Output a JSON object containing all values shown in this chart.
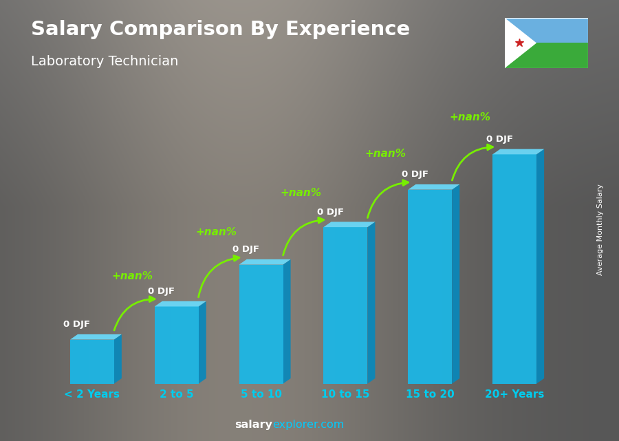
{
  "title": "Salary Comparison By Experience",
  "subtitle": "Laboratory Technician",
  "categories": [
    "< 2 Years",
    "2 to 5",
    "5 to 10",
    "10 to 15",
    "15 to 20",
    "20+ Years"
  ],
  "salary_labels": [
    "0 DJF",
    "0 DJF",
    "0 DJF",
    "0 DJF",
    "0 DJF",
    "0 DJF"
  ],
  "pct_labels": [
    "+nan%",
    "+nan%",
    "+nan%",
    "+nan%",
    "+nan%"
  ],
  "ylabel_right": "Average Monthly Salary",
  "footer_salary": "salary",
  "footer_explorer": "explorer.com",
  "bar_heights": [
    1.0,
    1.75,
    2.7,
    3.55,
    4.4,
    5.2
  ],
  "bar_face_color": "#1ab8e8",
  "bar_top_color": "#6ad8f8",
  "bar_side_color": "#0888bb",
  "bg_gray": "#808080",
  "title_color": "#ffffff",
  "subtitle_color": "#ffffff",
  "label_color": "#ffffff",
  "pct_color": "#77ee00",
  "arrow_color": "#77ee00",
  "footer_color_salary": "#ffffff",
  "footer_color_explorer": "#00ccff",
  "right_label_color": "#ffffff",
  "tick_color": "#00ccee",
  "flag_blue": "#6ab0e0",
  "flag_green": "#3aaa3a",
  "flag_white": "#ffffff",
  "flag_red": "#cc2222"
}
